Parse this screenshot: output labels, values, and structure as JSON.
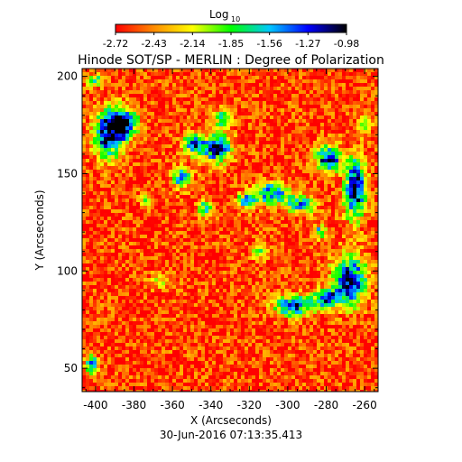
{
  "chart_data": {
    "type": "heatmap",
    "title": "Hinode SOT/SP - MERLIN : Degree of Polarization",
    "subtitle": "30-Jun-2016 07:13:35.413",
    "xlabel": "X (Arcseconds)",
    "ylabel": "Y (Arcseconds)",
    "xlim": [
      -407,
      -253
    ],
    "ylim": [
      38,
      204
    ],
    "x_ticks": [
      -400,
      -380,
      -360,
      -340,
      -320,
      -300,
      -280,
      -260
    ],
    "y_ticks": [
      50,
      100,
      150,
      200
    ],
    "colorbar": {
      "label_main": "Log",
      "label_sub": "10",
      "range": [
        -2.72,
        -0.98
      ],
      "ticks": [
        "-2.72",
        "-2.43",
        "-2.14",
        "-1.85",
        "-1.56",
        "-1.27",
        "-0.98"
      ],
      "colormap": [
        "#ff0000",
        "#ff8c00",
        "#ffff00",
        "#00ff00",
        "#00c8ff",
        "#0000ff",
        "#000000"
      ]
    },
    "background_level": -2.6,
    "regions": [
      {
        "x": -393,
        "y": 170,
        "rx": 9,
        "ry": 14,
        "level": -1.2
      },
      {
        "x": -385,
        "y": 176,
        "rx": 8,
        "ry": 8,
        "level": -1.1
      },
      {
        "x": -337,
        "y": 163,
        "rx": 8,
        "ry": 8,
        "level": -1.1
      },
      {
        "x": -349,
        "y": 165,
        "rx": 6,
        "ry": 6,
        "level": -1.4
      },
      {
        "x": -355,
        "y": 148,
        "rx": 6,
        "ry": 6,
        "level": -1.5
      },
      {
        "x": -333,
        "y": 178,
        "rx": 5,
        "ry": 6,
        "level": -1.7
      },
      {
        "x": -279,
        "y": 158,
        "rx": 7,
        "ry": 8,
        "level": -1.1
      },
      {
        "x": -265,
        "y": 142,
        "rx": 6,
        "ry": 18,
        "level": -1.0
      },
      {
        "x": -308,
        "y": 140,
        "rx": 10,
        "ry": 6,
        "level": -1.3
      },
      {
        "x": -293,
        "y": 134,
        "rx": 8,
        "ry": 5,
        "level": -1.4
      },
      {
        "x": -321,
        "y": 136,
        "rx": 6,
        "ry": 5,
        "level": -1.6
      },
      {
        "x": -297,
        "y": 82,
        "rx": 12,
        "ry": 6,
        "level": -1.3
      },
      {
        "x": -268,
        "y": 95,
        "rx": 10,
        "ry": 14,
        "level": -1.1
      },
      {
        "x": -280,
        "y": 86,
        "rx": 8,
        "ry": 5,
        "level": -1.4
      },
      {
        "x": -402,
        "y": 52,
        "rx": 4,
        "ry": 6,
        "level": -1.5
      },
      {
        "x": -343,
        "y": 132,
        "rx": 4,
        "ry": 4,
        "level": -1.6
      },
      {
        "x": -400,
        "y": 198,
        "rx": 5,
        "ry": 4,
        "level": -1.8
      },
      {
        "x": -366,
        "y": 95,
        "rx": 6,
        "ry": 4,
        "level": -2.0
      },
      {
        "x": -315,
        "y": 110,
        "rx": 5,
        "ry": 5,
        "level": -2.0
      },
      {
        "x": -283,
        "y": 120,
        "rx": 4,
        "ry": 4,
        "level": -1.7
      },
      {
        "x": -260,
        "y": 175,
        "rx": 5,
        "ry": 5,
        "level": -1.9
      },
      {
        "x": -374,
        "y": 136,
        "rx": 3,
        "ry": 4,
        "level": -1.9
      }
    ]
  }
}
